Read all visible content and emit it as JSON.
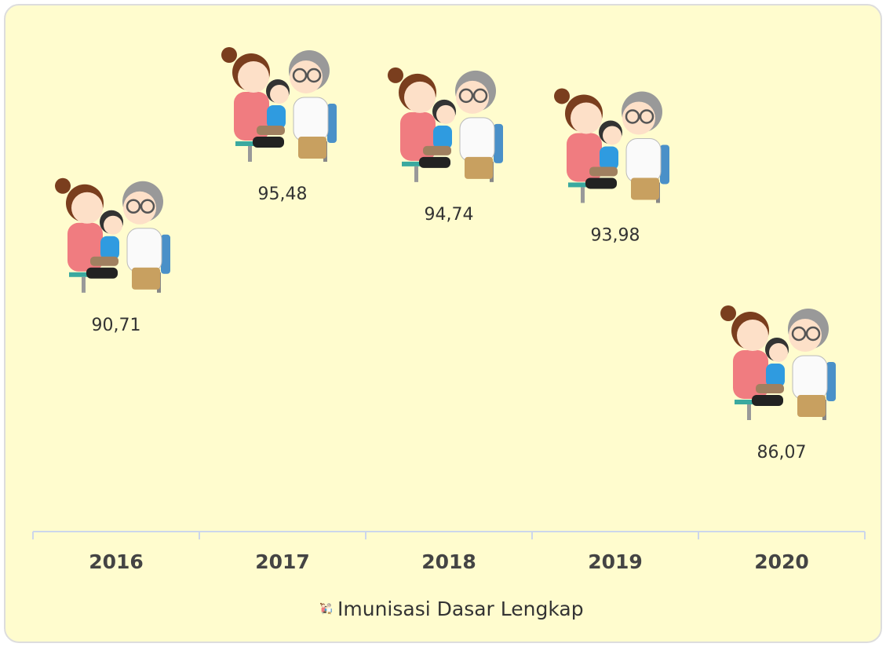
{
  "chart_data": {
    "type": "pictorial",
    "categories": [
      "2016",
      "2017",
      "2018",
      "2019",
      "2020"
    ],
    "series": [
      {
        "name": "Imunisasi Dasar Lengkap",
        "values": [
          90.71,
          95.48,
          94.74,
          93.98,
          86.07
        ],
        "value_labels": [
          "90,71",
          "95,48",
          "94,74",
          "93,98",
          "86,07"
        ]
      }
    ]
  }
}
